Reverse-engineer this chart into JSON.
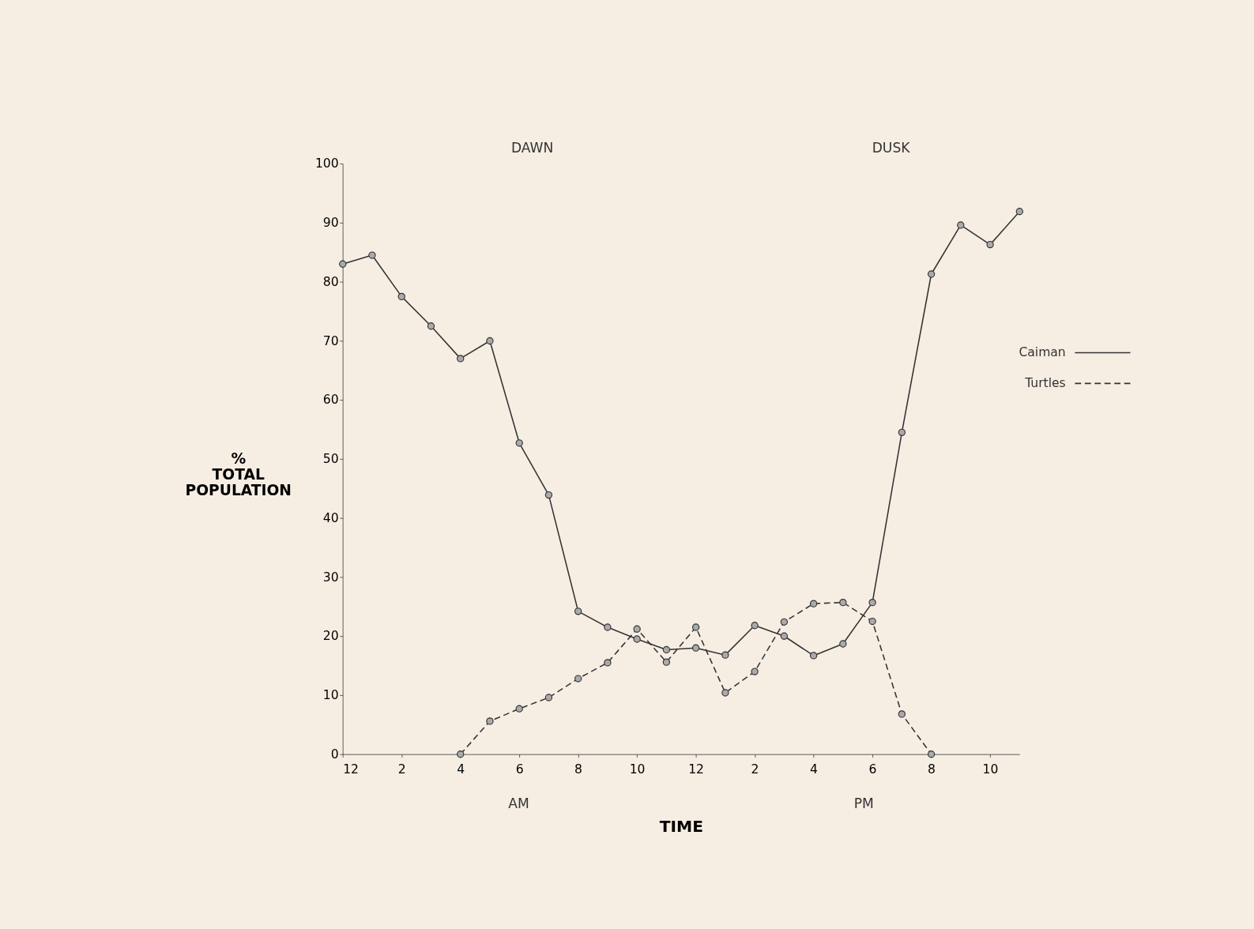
{
  "chart_data": {
    "type": "line",
    "xlabel": "TIME",
    "ylabel": "%\nTOTAL\nPOPULATION",
    "categories": [
      "12",
      null,
      "2",
      null,
      "4",
      null,
      "6",
      null,
      "8",
      null,
      "10",
      null,
      "12",
      null,
      "2",
      null,
      "4",
      null,
      "6",
      null,
      "8",
      null,
      "10",
      null
    ],
    "ylim": [
      0,
      100
    ],
    "yticks": [
      0,
      10,
      20,
      30,
      40,
      50,
      60,
      70,
      80,
      90,
      100
    ],
    "grid": false,
    "legend": "right",
    "marker": "circle",
    "annotations": [
      "DAWN",
      "DUSK",
      "AM",
      "PM"
    ],
    "series": [
      {
        "name": "Caiman",
        "color": "#333333",
        "line_style": "solid",
        "values": [
          83,
          84.5,
          77.5,
          72.5,
          67,
          70,
          52.7,
          43.9,
          24.2,
          21.5,
          19.5,
          17.7,
          18,
          16.8,
          21.8,
          20,
          16.7,
          18.7,
          25.7,
          54.5,
          81.3,
          89.6,
          86.3,
          91.9
        ]
      },
      {
        "name": "Turtles",
        "color": "#333333",
        "line_style": "dashed",
        "values": [
          null,
          null,
          null,
          null,
          0,
          5.6,
          7.7,
          9.6,
          12.8,
          15.5,
          21.2,
          15.6,
          21.5,
          10.4,
          14,
          22.4,
          25.5,
          25.7,
          22.5,
          6.8,
          0,
          null,
          null,
          null
        ]
      }
    ]
  }
}
